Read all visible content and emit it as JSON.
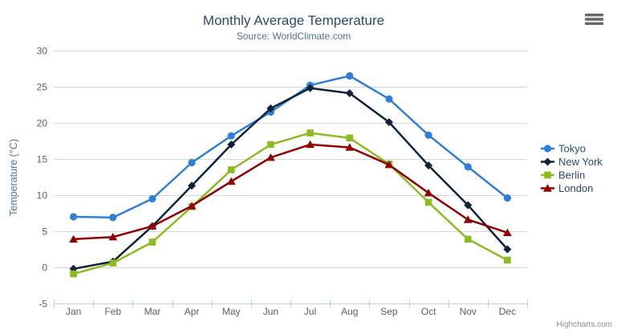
{
  "chart_data": {
    "type": "line",
    "title": "Monthly Average Temperature",
    "subtitle": "Source: WorldClimate.com",
    "categories": [
      "Jan",
      "Feb",
      "Mar",
      "Apr",
      "May",
      "Jun",
      "Jul",
      "Aug",
      "Sep",
      "Oct",
      "Nov",
      "Dec"
    ],
    "xlabel": "",
    "ylabel": "Temperature (°C)",
    "ylim": [
      -5,
      30
    ],
    "ytick_step": 5,
    "grid": true,
    "legend_position": "right",
    "series": [
      {
        "name": "Tokyo",
        "color": "#2f7ed8",
        "marker": "circle",
        "values": [
          7.0,
          6.9,
          9.5,
          14.5,
          18.2,
          21.5,
          25.2,
          26.5,
          23.3,
          18.3,
          13.9,
          9.6
        ]
      },
      {
        "name": "New York",
        "color": "#0d233a",
        "marker": "diamond",
        "values": [
          -0.2,
          0.8,
          5.7,
          11.3,
          17.0,
          22.0,
          24.8,
          24.1,
          20.1,
          14.1,
          8.6,
          2.5
        ]
      },
      {
        "name": "Berlin",
        "color": "#8bbc21",
        "marker": "square",
        "values": [
          -0.9,
          0.6,
          3.5,
          8.4,
          13.5,
          17.0,
          18.6,
          17.9,
          14.3,
          9.0,
          3.9,
          1.0
        ]
      },
      {
        "name": "London",
        "color": "#910000",
        "marker": "triangle",
        "values": [
          3.9,
          4.2,
          5.7,
          8.5,
          11.9,
          15.2,
          17.0,
          16.6,
          14.2,
          10.3,
          6.6,
          4.8
        ]
      }
    ]
  },
  "footer": {
    "credit": "Highcharts.com"
  },
  "menu": {
    "icon": "hamburger-icon"
  },
  "theme": {
    "title_color": "#274b6d",
    "subtitle_color": "#4d759e",
    "axis_label_color": "#606060",
    "axis_title_color": "#4d759e",
    "legend_text_color": "#274b6d",
    "grid_color": "#d8d8d8",
    "axis_line_color": "#c0d0e0",
    "credit_color": "#909090",
    "menu_icon_color": "#666666"
  }
}
